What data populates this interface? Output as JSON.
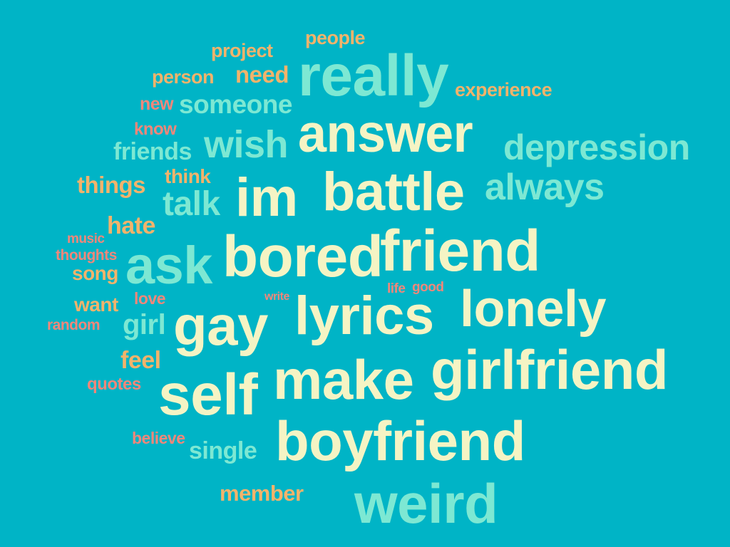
{
  "words": {
    "really": "really",
    "answer": "answer",
    "battle": "battle",
    "im": "im",
    "bored": "bored",
    "friend": "friend",
    "ask": "ask",
    "lonely": "lonely",
    "lyrics": "lyrics",
    "gay": "gay",
    "make": "make",
    "girlfriend": "girlfriend",
    "self": "self",
    "boyfriend": "boyfriend",
    "weird": "weird",
    "depression": "depression",
    "always": "always",
    "wish": "wish",
    "someone": "someone",
    "talk": "talk",
    "friends": "friends",
    "single": "single",
    "girl": "girl",
    "people": "people",
    "project": "project",
    "need": "need",
    "person": "person",
    "experience": "experience",
    "things": "things",
    "think": "think",
    "hate": "hate",
    "song": "song",
    "want": "want",
    "feel": "feel",
    "member": "member",
    "new": "new",
    "know": "know",
    "music": "music",
    "thoughts": "thoughts",
    "love": "love",
    "random": "random",
    "quotes": "quotes",
    "believe": "believe",
    "write": "write",
    "life": "life",
    "good": "good"
  },
  "colors": {
    "background": "#00B4C6",
    "cream": "#F5F4C4",
    "mint": "#7DE8D3",
    "orange": "#F2B36B",
    "salmon": "#F2877A"
  }
}
